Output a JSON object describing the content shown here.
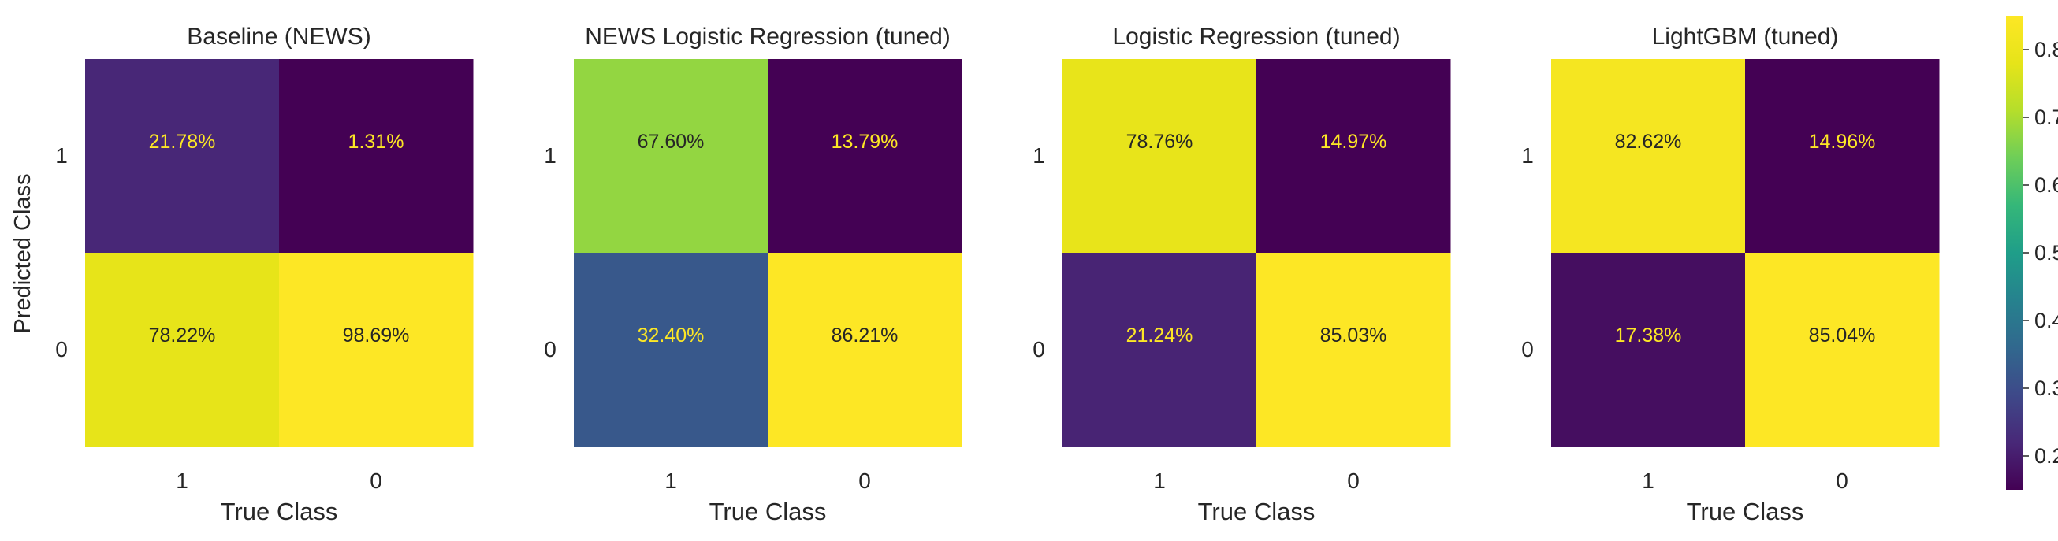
{
  "chart_data": {
    "type": "heatmap",
    "colormap": "viridis",
    "colorbar": {
      "range": [
        0.15,
        0.85
      ],
      "ticks": [
        "0.2",
        "0.3",
        "0.4",
        "0.5",
        "0.6",
        "0.7",
        "0.8"
      ],
      "tick_values": [
        0.2,
        0.3,
        0.4,
        0.5,
        0.6,
        0.7,
        0.8
      ]
    },
    "shared_axes": {
      "ylabel": "Predicted Class",
      "xlabel": "True Class",
      "x_categories": [
        "1",
        "0"
      ],
      "y_categories": [
        "1",
        "0"
      ]
    },
    "panels": [
      {
        "title": "Baseline (NEWS)",
        "cells": [
          {
            "row": 0,
            "col": 0,
            "value": 0.2178,
            "label": "21.78%"
          },
          {
            "row": 0,
            "col": 1,
            "value": 0.0131,
            "label": "1.31%"
          },
          {
            "row": 1,
            "col": 0,
            "value": 0.7822,
            "label": "78.22%"
          },
          {
            "row": 1,
            "col": 1,
            "value": 0.9869,
            "label": "98.69%"
          }
        ]
      },
      {
        "title": "NEWS Logistic Regression (tuned)",
        "cells": [
          {
            "row": 0,
            "col": 0,
            "value": 0.676,
            "label": "67.60%"
          },
          {
            "row": 0,
            "col": 1,
            "value": 0.1379,
            "label": "13.79%"
          },
          {
            "row": 1,
            "col": 0,
            "value": 0.324,
            "label": "32.40%"
          },
          {
            "row": 1,
            "col": 1,
            "value": 0.8621,
            "label": "86.21%"
          }
        ]
      },
      {
        "title": "Logistic Regression (tuned)",
        "cells": [
          {
            "row": 0,
            "col": 0,
            "value": 0.7876,
            "label": "78.76%"
          },
          {
            "row": 0,
            "col": 1,
            "value": 0.1497,
            "label": "14.97%"
          },
          {
            "row": 1,
            "col": 0,
            "value": 0.2124,
            "label": "21.24%"
          },
          {
            "row": 1,
            "col": 1,
            "value": 0.8503,
            "label": "85.03%"
          }
        ]
      },
      {
        "title": "LightGBM (tuned)",
        "cells": [
          {
            "row": 0,
            "col": 0,
            "value": 0.8262,
            "label": "82.62%"
          },
          {
            "row": 0,
            "col": 1,
            "value": 0.1496,
            "label": "14.96%"
          },
          {
            "row": 1,
            "col": 0,
            "value": 0.1738,
            "label": "17.38%"
          },
          {
            "row": 1,
            "col": 1,
            "value": 0.8504,
            "label": "85.04%"
          }
        ]
      }
    ]
  }
}
